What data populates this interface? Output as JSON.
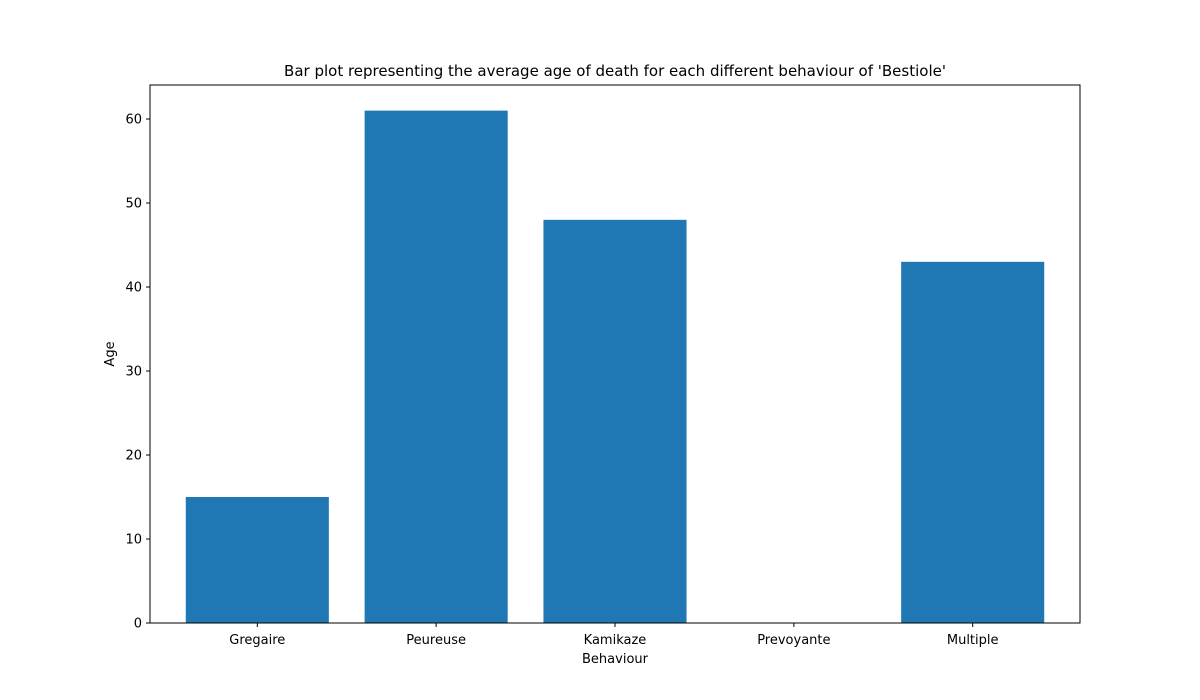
{
  "chart_data": {
    "type": "bar",
    "title": "Bar plot representing the average age of death for each different behaviour of 'Bestiole'",
    "xlabel": "Behaviour",
    "ylabel": "Age",
    "categories": [
      "Gregaire",
      "Peureuse",
      "Kamikaze",
      "Prevoyante",
      "Multiple"
    ],
    "values": [
      15,
      61,
      48,
      0,
      43
    ],
    "ylim": [
      0,
      64.05
    ],
    "yticks": [
      0,
      10,
      20,
      30,
      40,
      50,
      60
    ],
    "bar_color": "#1f77b4",
    "grid": false,
    "legend": false
  }
}
